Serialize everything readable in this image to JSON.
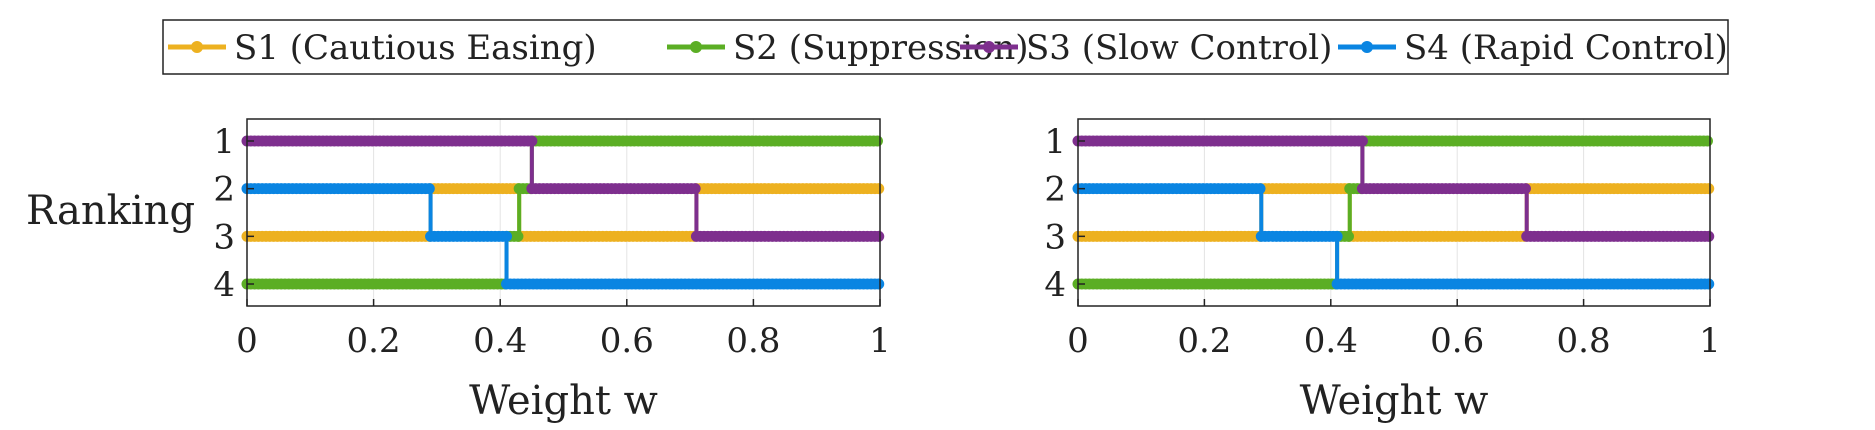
{
  "legend": {
    "placement": "top-center",
    "entries": [
      {
        "label": "S1 (Cautious Easing)",
        "color": "#EDB120"
      },
      {
        "label": "S2 (Suppression)",
        "color": "#5BAE24"
      },
      {
        "label": "S3 (Slow Control)",
        "color": "#7E2F8E"
      },
      {
        "label": "S4 (Rapid Control)",
        "color": "#0A85E2"
      }
    ]
  },
  "chart_data": [
    {
      "type": "line",
      "xlabel": "Weight w",
      "ylabel": "Ranking",
      "xlim": [
        0,
        1
      ],
      "ylim": [
        4,
        1
      ],
      "y_reversed": true,
      "xticks": [
        "0",
        "0.2",
        "0.4",
        "0.6",
        "0.8",
        "1"
      ],
      "yticks": [
        "1",
        "2",
        "3",
        "4"
      ],
      "grid": "vertical",
      "series": [
        {
          "name": "S1 (Cautious Easing)",
          "color": "#EDB120",
          "segments": [
            {
              "x0": 0,
              "x1": 0.29,
              "rank": 3
            },
            {
              "x0": 0.29,
              "x1": 0.43,
              "rank": 2
            },
            {
              "x0": 0.43,
              "x1": 0.71,
              "rank": 3
            },
            {
              "x0": 0.71,
              "x1": 1,
              "rank": 2
            }
          ]
        },
        {
          "name": "S2 (Suppression)",
          "color": "#5BAE24",
          "segments": [
            {
              "x0": 0,
              "x1": 0.41,
              "rank": 4
            },
            {
              "x0": 0.41,
              "x1": 0.43,
              "rank": 3
            },
            {
              "x0": 0.43,
              "x1": 0.45,
              "rank": 2
            },
            {
              "x0": 0.45,
              "x1": 1,
              "rank": 1
            }
          ]
        },
        {
          "name": "S3 (Slow Control)",
          "color": "#7E2F8E",
          "segments": [
            {
              "x0": 0,
              "x1": 0.45,
              "rank": 1
            },
            {
              "x0": 0.45,
              "x1": 0.71,
              "rank": 2
            },
            {
              "x0": 0.71,
              "x1": 1,
              "rank": 3
            }
          ]
        },
        {
          "name": "S4 (Rapid Control)",
          "color": "#0A85E2",
          "segments": [
            {
              "x0": 0,
              "x1": 0.29,
              "rank": 2
            },
            {
              "x0": 0.29,
              "x1": 0.41,
              "rank": 3
            },
            {
              "x0": 0.41,
              "x1": 1,
              "rank": 4
            }
          ]
        }
      ]
    },
    {
      "type": "line",
      "xlabel": "Weight w",
      "ylabel": "",
      "xlim": [
        0,
        1
      ],
      "ylim": [
        4,
        1
      ],
      "y_reversed": true,
      "xticks": [
        "0",
        "0.2",
        "0.4",
        "0.6",
        "0.8",
        "1"
      ],
      "yticks": [
        "1",
        "2",
        "3",
        "4"
      ],
      "grid": "vertical",
      "series": [
        {
          "name": "S1 (Cautious Easing)",
          "color": "#EDB120",
          "segments": [
            {
              "x0": 0,
              "x1": 0.29,
              "rank": 3
            },
            {
              "x0": 0.29,
              "x1": 0.43,
              "rank": 2
            },
            {
              "x0": 0.43,
              "x1": 0.71,
              "rank": 3
            },
            {
              "x0": 0.71,
              "x1": 1,
              "rank": 2
            }
          ]
        },
        {
          "name": "S2 (Suppression)",
          "color": "#5BAE24",
          "segments": [
            {
              "x0": 0,
              "x1": 0.41,
              "rank": 4
            },
            {
              "x0": 0.41,
              "x1": 0.43,
              "rank": 3
            },
            {
              "x0": 0.43,
              "x1": 0.45,
              "rank": 2
            },
            {
              "x0": 0.45,
              "x1": 1,
              "rank": 1
            }
          ]
        },
        {
          "name": "S3 (Slow Control)",
          "color": "#7E2F8E",
          "segments": [
            {
              "x0": 0,
              "x1": 0.45,
              "rank": 1
            },
            {
              "x0": 0.45,
              "x1": 0.71,
              "rank": 2
            },
            {
              "x0": 0.71,
              "x1": 1,
              "rank": 3
            }
          ]
        },
        {
          "name": "S4 (Rapid Control)",
          "color": "#0A85E2",
          "segments": [
            {
              "x0": 0,
              "x1": 0.29,
              "rank": 2
            },
            {
              "x0": 0.29,
              "x1": 0.41,
              "rank": 3
            },
            {
              "x0": 0.41,
              "x1": 1,
              "rank": 4
            }
          ]
        }
      ]
    }
  ]
}
